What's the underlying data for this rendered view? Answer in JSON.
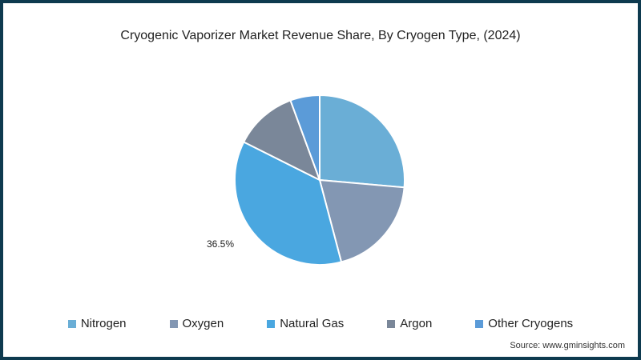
{
  "chart_data": {
    "type": "pie",
    "title": "Cryogenic Vaporizer Market Revenue Share, By Cryogen Type, (2024)",
    "categories": [
      "Nitrogen",
      "Oxygen",
      "Natural Gas",
      "Argon",
      "Other Cryogens"
    ],
    "values": [
      26.4,
      19.5,
      36.5,
      12.0,
      5.6
    ],
    "colors": [
      "#6aaed6",
      "#8397b3",
      "#4aa7e0",
      "#7a8799",
      "#5b9bd8"
    ],
    "annotations": [
      {
        "category": "Natural Gas",
        "text": "36.5%"
      }
    ],
    "legend_position": "bottom"
  },
  "title": "Cryogenic Vaporizer Market Revenue Share, By Cryogen Type, (2024)",
  "legend": [
    "Nitrogen",
    "Oxygen",
    "Natural Gas",
    "Argon",
    "Other Cryogens"
  ],
  "label_natural_gas": "36.5%",
  "source": "Source: www.gminsights.com"
}
